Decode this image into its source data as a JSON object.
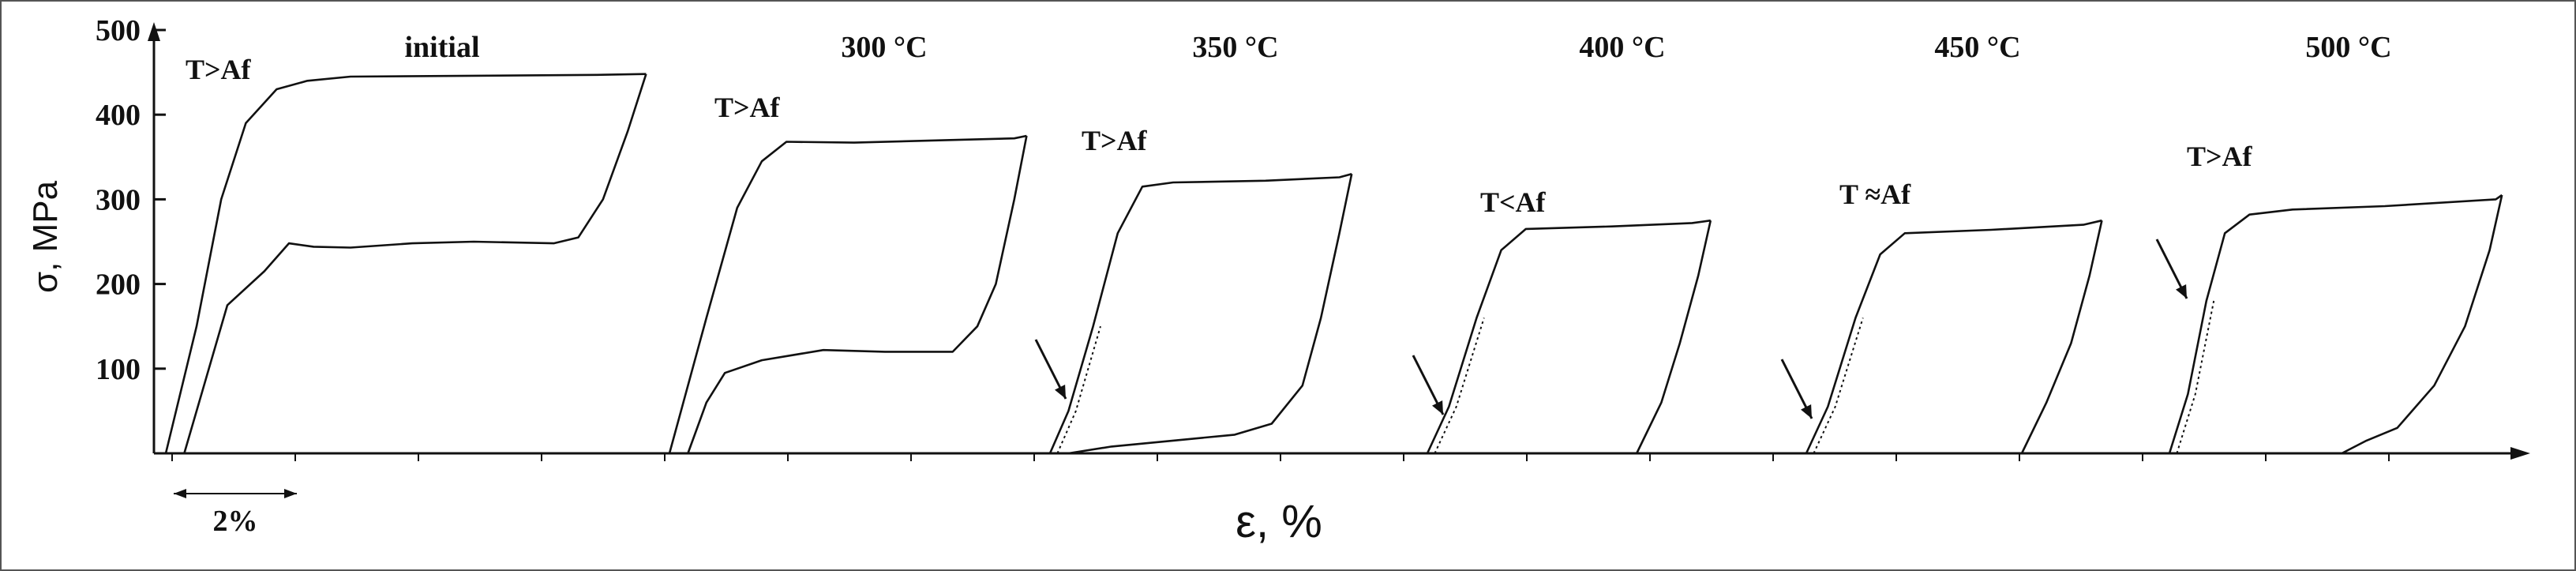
{
  "chart_data": {
    "type": "line",
    "ylabel": "σ, MPa",
    "xlabel": "ε, %",
    "ylim": [
      0,
      500
    ],
    "yticks": [
      "100",
      "200",
      "300",
      "400",
      "500"
    ],
    "scale_bar": {
      "label": "2%",
      "strain": 2
    },
    "panels": [
      {
        "title": "initial",
        "condition": "T>Af",
        "arrow": false,
        "loading": [
          [
            0,
            0
          ],
          [
            0.5,
            150
          ],
          [
            0.9,
            300
          ],
          [
            1.3,
            390
          ],
          [
            1.8,
            430
          ],
          [
            2.3,
            440
          ],
          [
            3,
            445
          ],
          [
            5,
            446
          ],
          [
            7,
            447
          ],
          [
            7.8,
            448
          ]
        ],
        "unloading": [
          [
            7.8,
            448
          ],
          [
            7.5,
            380
          ],
          [
            7.1,
            300
          ],
          [
            6.7,
            255
          ],
          [
            6.3,
            248
          ],
          [
            5,
            250
          ],
          [
            4,
            248
          ],
          [
            3,
            243
          ],
          [
            2.4,
            244
          ],
          [
            2,
            248
          ],
          [
            1.6,
            215
          ],
          [
            1.0,
            175
          ],
          [
            0.7,
            100
          ],
          [
            0.3,
            0
          ]
        ]
      },
      {
        "title": "300 °C",
        "condition": "T>Af",
        "arrow": false,
        "loading": [
          [
            0,
            0
          ],
          [
            0.6,
            160
          ],
          [
            1.1,
            290
          ],
          [
            1.5,
            345
          ],
          [
            1.9,
            368
          ],
          [
            3,
            367
          ],
          [
            4.5,
            370
          ],
          [
            5.6,
            372
          ],
          [
            5.8,
            375
          ]
        ],
        "unloading": [
          [
            5.8,
            375
          ],
          [
            5.6,
            300
          ],
          [
            5.3,
            200
          ],
          [
            5.0,
            150
          ],
          [
            4.6,
            120
          ],
          [
            3.5,
            120
          ],
          [
            2.5,
            122
          ],
          [
            1.5,
            110
          ],
          [
            0.9,
            95
          ],
          [
            0.6,
            60
          ],
          [
            0.3,
            0
          ]
        ]
      },
      {
        "title": "350 °C",
        "condition": "T>Af",
        "arrow": true,
        "loading": [
          [
            0,
            0
          ],
          [
            0.3,
            50
          ],
          [
            0.7,
            150
          ],
          [
            1.1,
            260
          ],
          [
            1.5,
            315
          ],
          [
            2,
            320
          ],
          [
            3.5,
            322
          ],
          [
            4.7,
            326
          ],
          [
            4.9,
            330
          ]
        ],
        "unloading": [
          [
            4.9,
            330
          ],
          [
            4.7,
            260
          ],
          [
            4.4,
            160
          ],
          [
            4.1,
            80
          ],
          [
            3.6,
            35
          ],
          [
            3,
            22
          ],
          [
            2,
            15
          ],
          [
            1,
            8
          ],
          [
            0.3,
            0
          ]
        ]
      },
      {
        "title": "400 °C",
        "condition": "T<Af",
        "arrow": true,
        "loading": [
          [
            0,
            0
          ],
          [
            0.35,
            55
          ],
          [
            0.8,
            160
          ],
          [
            1.2,
            240
          ],
          [
            1.6,
            265
          ],
          [
            3,
            268
          ],
          [
            4.3,
            272
          ],
          [
            4.6,
            275
          ]
        ],
        "unloading": [
          [
            4.6,
            275
          ],
          [
            4.4,
            210
          ],
          [
            4.1,
            130
          ],
          [
            3.8,
            60
          ],
          [
            3.4,
            0
          ]
        ]
      },
      {
        "title": "450 °C",
        "condition": "T ≈Af",
        "arrow": true,
        "loading": [
          [
            0,
            0
          ],
          [
            0.35,
            55
          ],
          [
            0.8,
            160
          ],
          [
            1.2,
            235
          ],
          [
            1.6,
            260
          ],
          [
            3,
            264
          ],
          [
            4.5,
            270
          ],
          [
            4.8,
            275
          ]
        ],
        "unloading": [
          [
            4.8,
            275
          ],
          [
            4.6,
            210
          ],
          [
            4.3,
            130
          ],
          [
            3.9,
            60
          ],
          [
            3.5,
            0
          ]
        ]
      },
      {
        "title": "500 °C",
        "condition": "T>Af",
        "arrow": true,
        "loading": [
          [
            0,
            0
          ],
          [
            0.3,
            70
          ],
          [
            0.6,
            180
          ],
          [
            0.9,
            260
          ],
          [
            1.3,
            282
          ],
          [
            2,
            288
          ],
          [
            3.5,
            292
          ],
          [
            5.3,
            300
          ],
          [
            5.4,
            305
          ]
        ],
        "unloading": [
          [
            5.4,
            305
          ],
          [
            5.2,
            240
          ],
          [
            4.8,
            150
          ],
          [
            4.3,
            80
          ],
          [
            3.7,
            30
          ],
          [
            3.2,
            15
          ],
          [
            2.8,
            0
          ]
        ]
      }
    ]
  }
}
